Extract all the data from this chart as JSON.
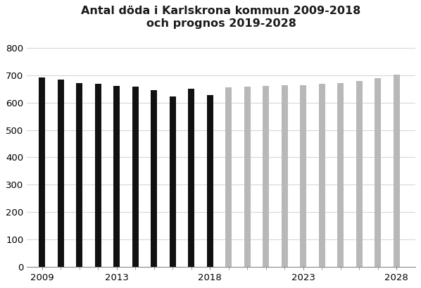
{
  "title_line1": "Antal döda i Karlskrona kommun 2009-2018",
  "title_line2": "och prognos 2019-2028",
  "years": [
    2009,
    2010,
    2011,
    2012,
    2013,
    2014,
    2015,
    2016,
    2017,
    2018,
    2019,
    2020,
    2021,
    2022,
    2023,
    2024,
    2025,
    2026,
    2027,
    2028
  ],
  "values": [
    693,
    685,
    672,
    670,
    662,
    658,
    645,
    622,
    650,
    627,
    657,
    660,
    662,
    663,
    665,
    668,
    672,
    680,
    690,
    703
  ],
  "bar_colors": [
    "#111111",
    "#111111",
    "#111111",
    "#111111",
    "#111111",
    "#111111",
    "#111111",
    "#111111",
    "#111111",
    "#111111",
    "#b8b8b8",
    "#b8b8b8",
    "#b8b8b8",
    "#b8b8b8",
    "#b8b8b8",
    "#b8b8b8",
    "#b8b8b8",
    "#b8b8b8",
    "#b8b8b8",
    "#b8b8b8"
  ],
  "ylim": [
    0,
    850
  ],
  "yticks": [
    0,
    100,
    200,
    300,
    400,
    500,
    600,
    700,
    800
  ],
  "xtick_major_positions": [
    2009,
    2013,
    2018,
    2023,
    2028
  ],
  "xtick_major_labels": [
    "2009",
    "2013",
    "2018",
    "2023",
    "2028"
  ],
  "xtick_minor_positions": [
    2009,
    2010,
    2011,
    2012,
    2013,
    2014,
    2015,
    2016,
    2017,
    2018,
    2019,
    2020,
    2021,
    2022,
    2023,
    2024,
    2025,
    2026,
    2027,
    2028
  ],
  "background_color": "#ffffff",
  "title_fontsize": 11.5,
  "tick_fontsize": 9.5,
  "bar_width": 0.35
}
